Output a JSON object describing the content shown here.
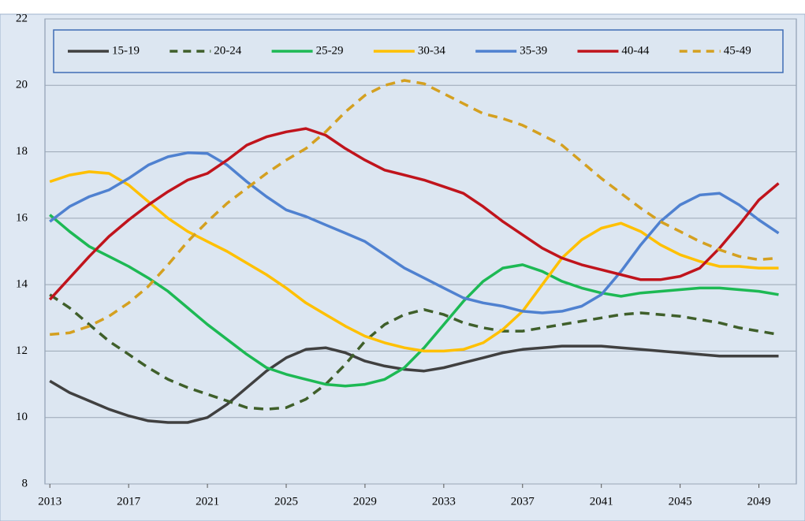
{
  "chart_data": {
    "type": "line",
    "x": [
      2013,
      2014,
      2015,
      2016,
      2017,
      2018,
      2019,
      2020,
      2021,
      2022,
      2023,
      2024,
      2025,
      2026,
      2027,
      2028,
      2029,
      2030,
      2031,
      2032,
      2033,
      2034,
      2035,
      2036,
      2037,
      2038,
      2039,
      2040,
      2041,
      2042,
      2043,
      2044,
      2045,
      2046,
      2047,
      2048,
      2049,
      2050
    ],
    "xlim": [
      2012.75,
      2050.9
    ],
    "xticks": [
      2013,
      2017,
      2021,
      2025,
      2029,
      2033,
      2037,
      2041,
      2045,
      2049
    ],
    "ylim": [
      8,
      22
    ],
    "yticks": [
      8,
      10,
      12,
      14,
      16,
      18,
      20,
      22
    ],
    "grid": true,
    "legend": "top",
    "series": [
      {
        "name": "15-19",
        "color": "#404040",
        "linestyle": "solid",
        "values": [
          11.1,
          10.75,
          10.5,
          10.25,
          10.05,
          9.9,
          9.85,
          9.85,
          10.0,
          10.4,
          10.9,
          11.4,
          11.8,
          12.05,
          12.1,
          11.95,
          11.7,
          11.55,
          11.45,
          11.4,
          11.5,
          11.65,
          11.8,
          11.95,
          12.05,
          12.1,
          12.15,
          12.15,
          12.15,
          12.1,
          12.05,
          12.0,
          11.95,
          11.9,
          11.85,
          11.85,
          11.85,
          11.85
        ]
      },
      {
        "name": "20-24",
        "color": "#3f5f2a",
        "linestyle": "dashed",
        "values": [
          13.7,
          13.3,
          12.8,
          12.3,
          11.9,
          11.5,
          11.15,
          10.9,
          10.7,
          10.5,
          10.3,
          10.25,
          10.3,
          10.55,
          11.0,
          11.6,
          12.3,
          12.8,
          13.1,
          13.25,
          13.1,
          12.85,
          12.7,
          12.6,
          12.6,
          12.7,
          12.8,
          12.9,
          13.0,
          13.1,
          13.15,
          13.1,
          13.05,
          12.95,
          12.85,
          12.7,
          12.6,
          12.5
        ]
      },
      {
        "name": "25-29",
        "color": "#1db954",
        "linestyle": "solid",
        "values": [
          16.1,
          15.6,
          15.15,
          14.85,
          14.55,
          14.2,
          13.8,
          13.3,
          12.8,
          12.35,
          11.9,
          11.5,
          11.3,
          11.15,
          11.0,
          10.95,
          11.0,
          11.15,
          11.5,
          12.1,
          12.8,
          13.5,
          14.1,
          14.5,
          14.6,
          14.4,
          14.1,
          13.9,
          13.75,
          13.65,
          13.75,
          13.8,
          13.85,
          13.9,
          13.9,
          13.85,
          13.8,
          13.7
        ]
      },
      {
        "name": "30-34",
        "color": "#ffc000",
        "linestyle": "solid",
        "values": [
          17.1,
          17.3,
          17.4,
          17.35,
          17.0,
          16.5,
          16.0,
          15.6,
          15.3,
          15.0,
          14.65,
          14.3,
          13.9,
          13.45,
          13.1,
          12.75,
          12.45,
          12.25,
          12.1,
          12.0,
          12.0,
          12.05,
          12.25,
          12.65,
          13.2,
          14.0,
          14.8,
          15.35,
          15.7,
          15.85,
          15.6,
          15.2,
          14.9,
          14.7,
          14.55,
          14.55,
          14.5,
          14.5
        ]
      },
      {
        "name": "35-39",
        "color": "#4f81d0",
        "linestyle": "solid",
        "values": [
          15.9,
          16.35,
          16.65,
          16.85,
          17.2,
          17.6,
          17.85,
          17.97,
          17.95,
          17.6,
          17.1,
          16.65,
          16.25,
          16.05,
          15.8,
          15.55,
          15.3,
          14.9,
          14.5,
          14.2,
          13.9,
          13.6,
          13.45,
          13.35,
          13.2,
          13.15,
          13.2,
          13.35,
          13.7,
          14.4,
          15.2,
          15.9,
          16.4,
          16.7,
          16.75,
          16.4,
          15.95,
          15.55
        ]
      },
      {
        "name": "40-44",
        "color": "#c0141c",
        "linestyle": "solid",
        "values": [
          13.55,
          14.2,
          14.85,
          15.45,
          15.95,
          16.4,
          16.8,
          17.15,
          17.35,
          17.75,
          18.2,
          18.45,
          18.6,
          18.7,
          18.5,
          18.1,
          17.75,
          17.45,
          17.3,
          17.15,
          16.95,
          16.75,
          16.35,
          15.9,
          15.5,
          15.1,
          14.8,
          14.6,
          14.45,
          14.3,
          14.15,
          14.15,
          14.25,
          14.5,
          15.1,
          15.8,
          16.55,
          17.05
        ]
      },
      {
        "name": "45-49",
        "color": "#d4a020",
        "linestyle": "dashed",
        "values": [
          12.5,
          12.55,
          12.75,
          13.05,
          13.45,
          13.95,
          14.6,
          15.3,
          15.9,
          16.45,
          16.9,
          17.35,
          17.75,
          18.1,
          18.6,
          19.2,
          19.7,
          20.0,
          20.15,
          20.05,
          19.75,
          19.45,
          19.15,
          19.0,
          18.8,
          18.5,
          18.2,
          17.7,
          17.2,
          16.75,
          16.3,
          15.9,
          15.6,
          15.3,
          15.05,
          14.85,
          14.75,
          14.8
        ]
      }
    ]
  }
}
